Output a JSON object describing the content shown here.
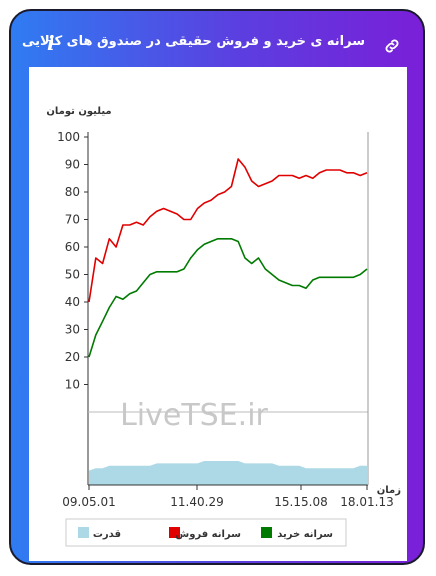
{
  "header": {
    "title": "سرانه ی خرید و فروش حقیقی در صندوق های کالایی",
    "info_icon": "info-icon",
    "link_icon": "link-icon"
  },
  "colors": {
    "sell": "#e00000",
    "buy": "#007a00",
    "power": "#add8e6"
  },
  "chart_data": {
    "type": "line",
    "ylabel": "میلیون تومان",
    "xlabel": "زمان",
    "watermark": "LiveTSE.ir",
    "ylim": [
      0,
      100
    ],
    "y_ticks": [
      10,
      20,
      30,
      40,
      50,
      60,
      70,
      80,
      90,
      100
    ],
    "x_ticks": [
      "09.05.01",
      "11.40.29",
      "15.15.08",
      "18.01.13"
    ],
    "x": [
      "09:05",
      "09:08",
      "09:10",
      "09:13",
      "09:16",
      "09:20",
      "09:25",
      "09:32",
      "09:40",
      "09:50",
      "10:00",
      "10:10",
      "10:20",
      "10:30",
      "10:45",
      "10:55",
      "11:05",
      "11:15",
      "11:20",
      "11:30",
      "11:35",
      "11:38",
      "11:40",
      "11:42",
      "11:48",
      "11:55",
      "12:05",
      "12:20",
      "12:35",
      "13:00",
      "13:30",
      "14:00",
      "14:20",
      "14:40",
      "15:00",
      "15:15",
      "15:40",
      "16:10",
      "16:40",
      "17:10",
      "17:40",
      "18:01"
    ],
    "series": [
      {
        "name": "سرانه فروش",
        "color": "#e00000",
        "values": [
          40,
          56,
          54,
          63,
          60,
          68,
          68,
          69,
          68,
          71,
          73,
          74,
          73,
          72,
          70,
          70,
          74,
          76,
          77,
          79,
          80,
          82,
          92,
          89,
          84,
          82,
          83,
          84,
          86,
          86,
          86,
          85,
          86,
          85,
          87,
          88,
          88,
          88,
          87,
          87,
          86,
          87
        ]
      },
      {
        "name": "سرانه خرید",
        "color": "#007a00",
        "values": [
          20,
          28,
          33,
          38,
          42,
          41,
          43,
          44,
          47,
          50,
          51,
          51,
          51,
          51,
          52,
          56,
          59,
          61,
          62,
          63,
          63,
          63,
          62,
          56,
          54,
          56,
          52,
          50,
          48,
          47,
          46,
          46,
          45,
          48,
          49,
          49,
          49,
          49,
          49,
          49,
          50,
          52
        ]
      },
      {
        "name": "قدرت",
        "color": "#add8e6",
        "values": [
          6,
          7,
          7,
          8,
          8,
          8,
          8,
          8,
          8,
          8,
          9,
          9,
          9,
          9,
          9,
          9,
          9,
          10,
          10,
          10,
          10,
          10,
          10,
          9,
          9,
          9,
          9,
          9,
          8,
          8,
          8,
          8,
          7,
          7,
          7,
          7,
          7,
          7,
          7,
          7,
          8,
          8
        ]
      }
    ],
    "legend": [
      "قدرت",
      "سرانه فروش",
      "سرانه خرید"
    ],
    "legend_placement": "bottom"
  }
}
